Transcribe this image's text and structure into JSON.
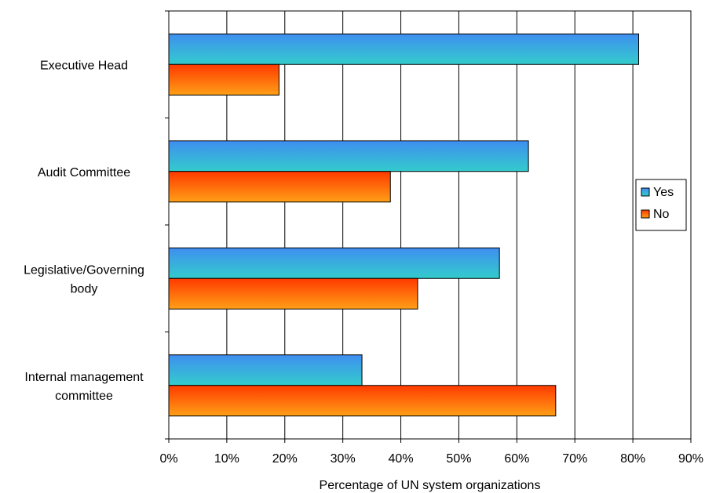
{
  "chart_data": {
    "type": "bar",
    "orientation": "horizontal",
    "title": "",
    "xlabel": "Percentage of UN system organizations",
    "ylabel": "",
    "categories": [
      "Executive Head",
      "Audit Committee",
      "Legislative/Governing body",
      "Internal management committee"
    ],
    "category_lines": [
      [
        "Executive Head"
      ],
      [
        "Audit Committee"
      ],
      [
        "Legislative/Governing",
        "body"
      ],
      [
        "Internal management",
        "committee"
      ]
    ],
    "series": [
      {
        "name": "Yes",
        "values": [
          81,
          62,
          57,
          33.3
        ]
      },
      {
        "name": "No",
        "values": [
          19,
          38.2,
          42.9,
          66.7
        ]
      }
    ],
    "xlim": [
      0,
      90
    ],
    "xticks": [
      "0%",
      "10%",
      "20%",
      "30%",
      "40%",
      "50%",
      "60%",
      "70%",
      "80%",
      "90%"
    ],
    "grid": true,
    "legend_position": "right",
    "colors": {
      "Yes": {
        "start": "#3f8ef0",
        "end": "#33cccc"
      },
      "No": {
        "start": "#ff3a00",
        "end": "#ff9f16"
      }
    }
  }
}
